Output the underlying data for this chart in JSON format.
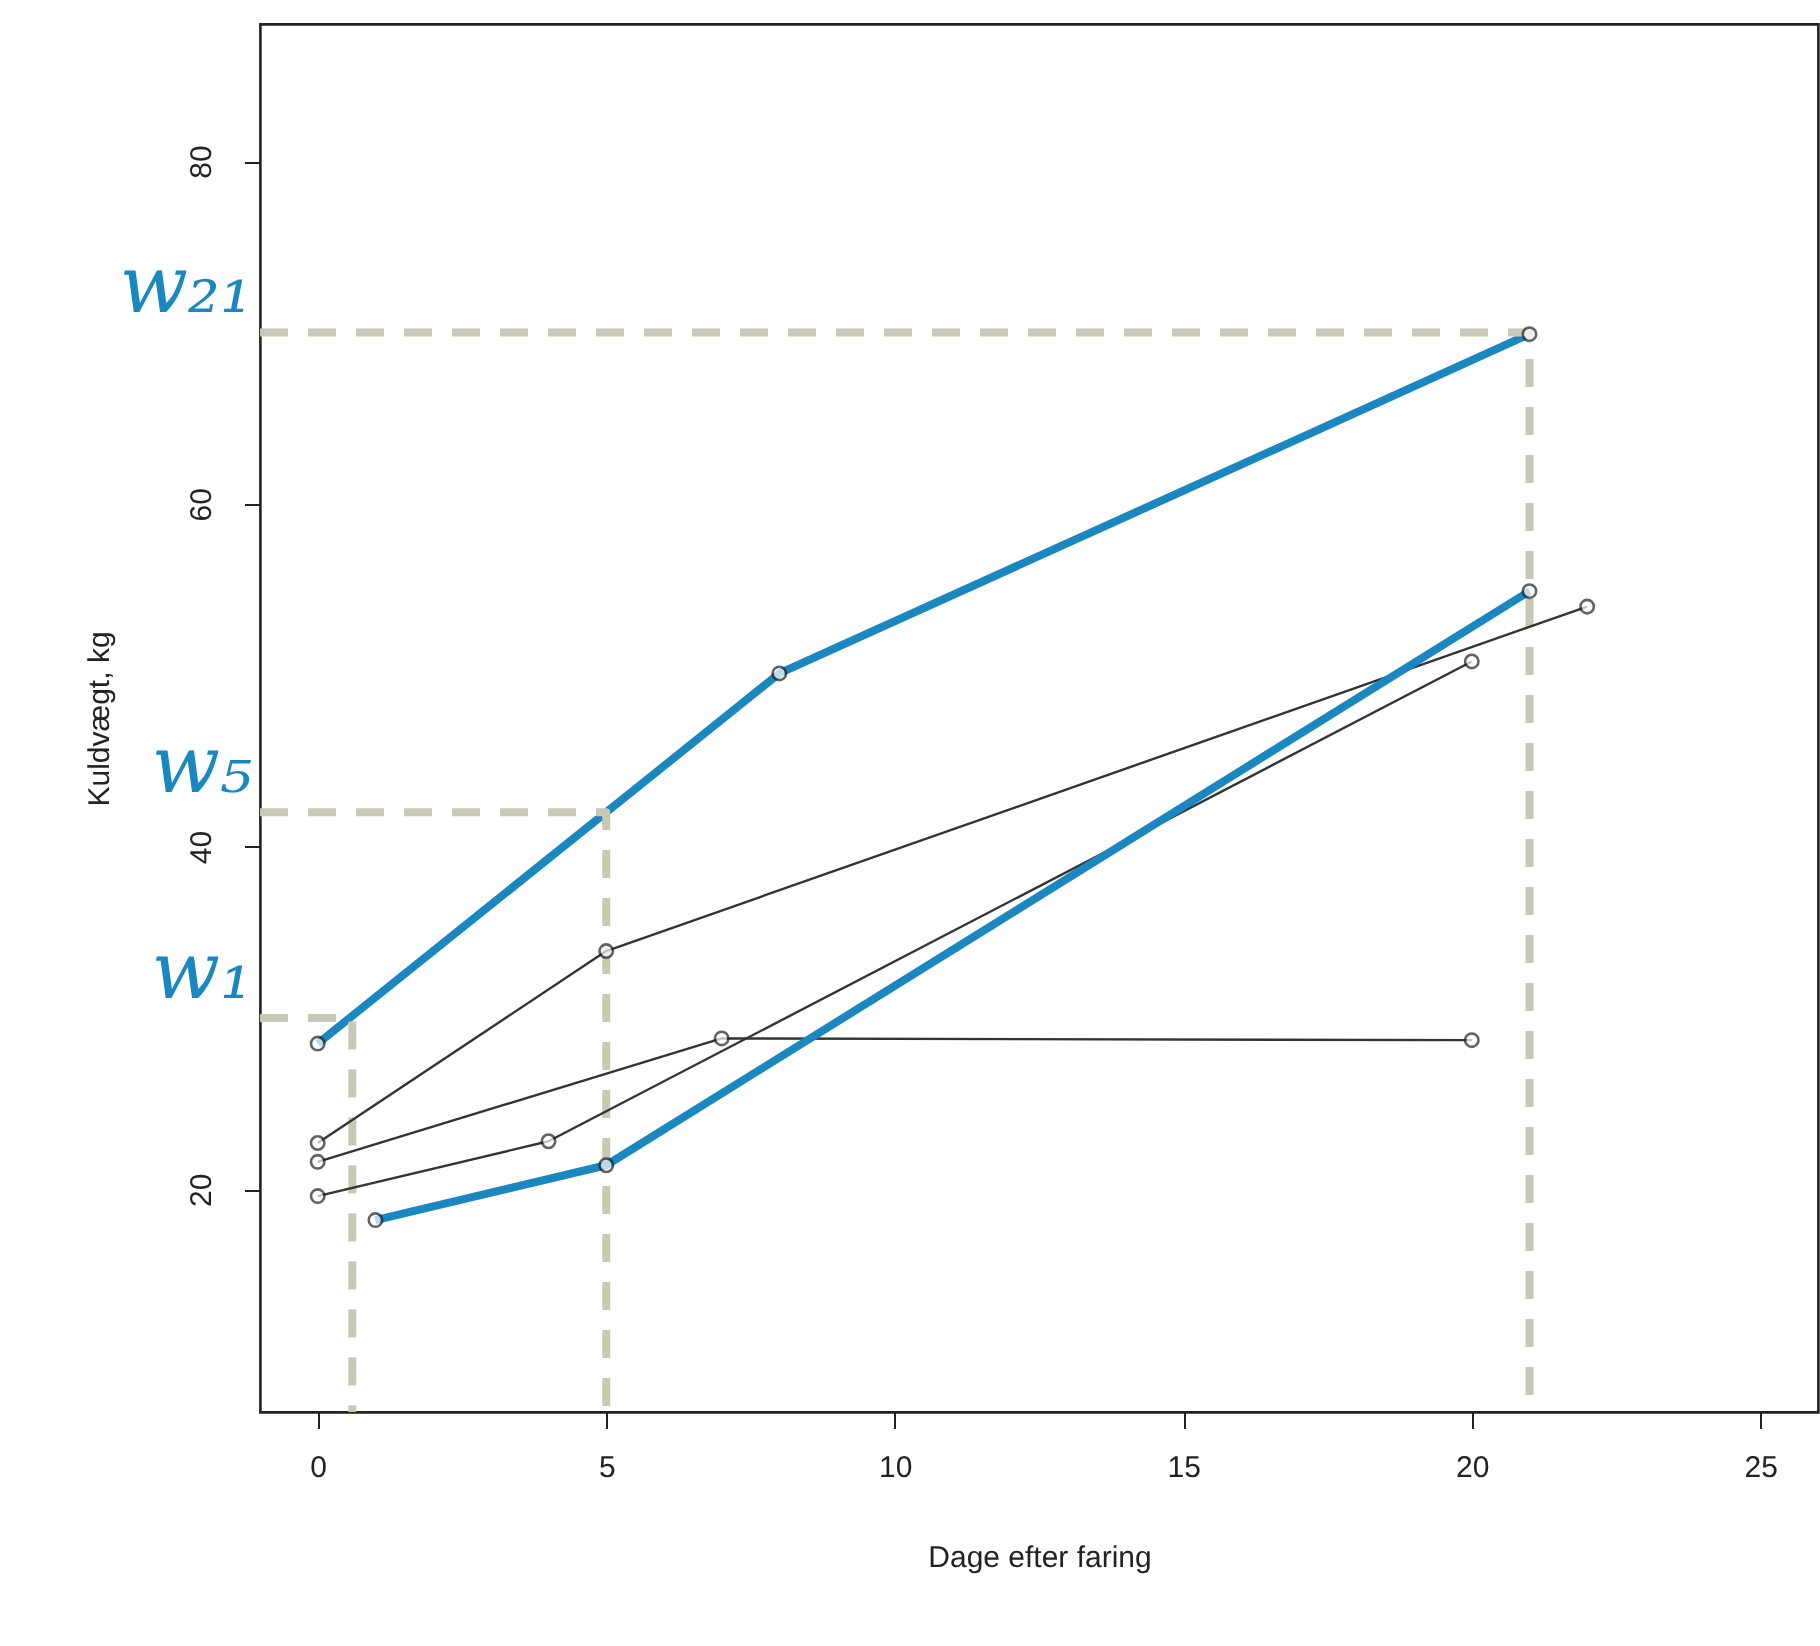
{
  "chart_data": {
    "type": "line",
    "xlabel": "Dage efter faring",
    "ylabel": "Kuldvægt, kg",
    "xlim": [
      -1,
      26
    ],
    "ylim": [
      7,
      88
    ],
    "xticks": [
      0,
      5,
      10,
      15,
      20,
      25
    ],
    "yticks": [
      20,
      40,
      60,
      80
    ],
    "grid": false,
    "legend": false,
    "marker": "circle",
    "line_style": "solid",
    "series": [
      {
        "color": "#1a87c0",
        "x": [
          0,
          8,
          21
        ],
        "values": [
          28.5,
          50.1,
          69.9
        ]
      },
      {
        "color": "#333333",
        "x": [
          0,
          5,
          22
        ],
        "values": [
          22.7,
          33.9,
          54.0
        ]
      },
      {
        "color": "#333333",
        "x": [
          0,
          7,
          20
        ],
        "values": [
          21.6,
          28.8,
          28.7
        ]
      },
      {
        "color": "#333333",
        "x": [
          0,
          4,
          20
        ],
        "values": [
          19.6,
          22.8,
          50.8
        ]
      },
      {
        "color": "#1a87c0",
        "x": [
          1,
          5,
          21
        ],
        "values": [
          18.2,
          21.4,
          54.9
        ]
      },
      {
        "color": "#c8c8b4",
        "line_style": "dashed",
        "marker": "none",
        "x": [
          -1,
          21,
          21
        ],
        "values": [
          70,
          70,
          7
        ]
      },
      {
        "color": "#c8c8b4",
        "line_style": "dashed",
        "marker": "none",
        "x": [
          -1,
          5,
          5
        ],
        "values": [
          42,
          42,
          7
        ]
      },
      {
        "color": "#c8c8b4",
        "line_style": "dashed",
        "marker": "none",
        "x": [
          -1,
          0.6,
          0.6
        ],
        "values": [
          30,
          30,
          7
        ]
      }
    ],
    "annotations": [
      "w₂₁",
      "w₅",
      "w₁"
    ]
  }
}
